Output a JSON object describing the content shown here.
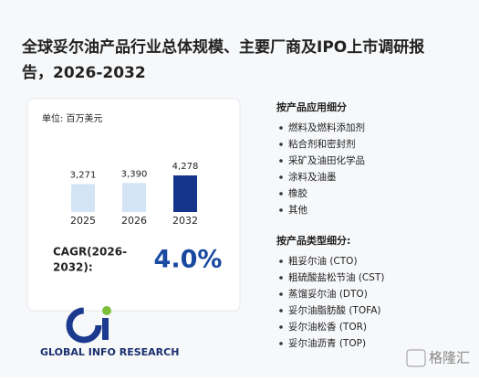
{
  "title": "全球妥尔油产品行业总体规模、主要厂商及IPO上市调研报告，2026-2032",
  "chart_data": {
    "type": "bar",
    "unit": "单位: 百万美元",
    "categories": [
      "2025",
      "2026",
      "2032"
    ],
    "values": [
      3271,
      3390,
      4278
    ],
    "value_labels": [
      "3,271",
      "3,390",
      "4,278"
    ],
    "colors": [
      "#d3e4f7",
      "#d3e4f7",
      "#16358a"
    ]
  },
  "cagr": {
    "label": "CAGR(2026-2032):",
    "value": "4.0%"
  },
  "applications": {
    "heading": "按产品应用细分",
    "items": [
      "燃料及燃料添加剂",
      "粘合剂和密封剂",
      "采矿及油田化学品",
      "涂料及油墨",
      "橡胶",
      "其他"
    ]
  },
  "types": {
    "heading": "按产品类型细分:",
    "items": [
      "粗妥尔油 (CTO)",
      "粗硫酸盐松节油 (CST)",
      "蒸馏妥尔油 (DTO)",
      "妥尔油脂肪酸 (TOFA)",
      "妥尔油松香 (TOR)",
      "妥尔油沥青 (TOP)"
    ]
  },
  "logo": "GLOBAL INFO RESEARCH",
  "watermark": "格隆汇"
}
